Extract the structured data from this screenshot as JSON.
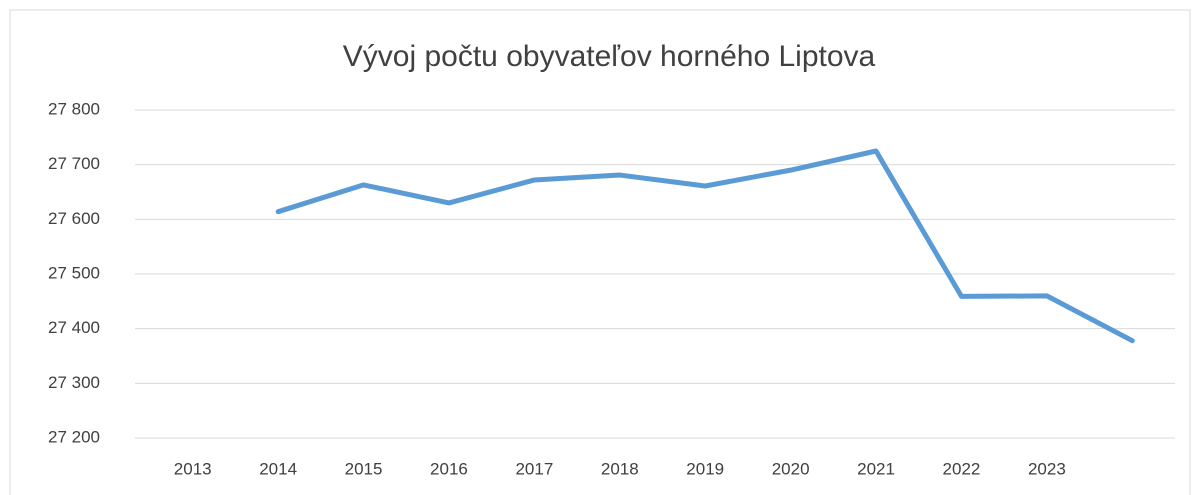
{
  "chart_data": {
    "type": "line",
    "title": "Vývoj počtu obyvateľov horného Liptova",
    "categories": [
      "2013",
      "2014",
      "2015",
      "2016",
      "2017",
      "2018",
      "2019",
      "2020",
      "2021",
      "2022",
      "2023",
      null
    ],
    "series": [
      {
        "color": "#5b9bd5",
        "values": [
          null,
          27614,
          27663,
          27630,
          27672,
          27681,
          27661,
          27690,
          27725,
          27459,
          27460,
          27378
        ]
      }
    ],
    "ylim": [
      27200,
      27800
    ],
    "yticks": [
      {
        "value": 27200,
        "label": "27 200"
      },
      {
        "value": 27300,
        "label": "27 300"
      },
      {
        "value": 27400,
        "label": "27 400"
      },
      {
        "value": 27500,
        "label": "27 500"
      },
      {
        "value": 27600,
        "label": "27 600"
      },
      {
        "value": 27700,
        "label": "27 700"
      },
      {
        "value": 27800,
        "label": "27 800"
      }
    ],
    "grid": true
  }
}
